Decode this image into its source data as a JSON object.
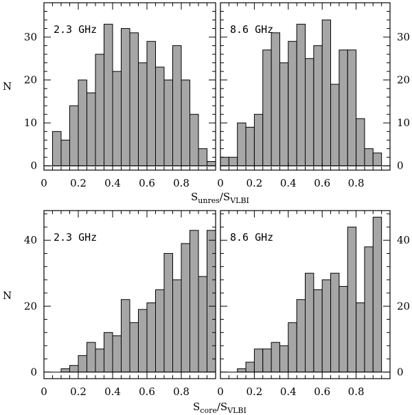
{
  "figure": {
    "top_xlabel": {
      "main": "S",
      "sub1": "unres",
      "slash": "/S",
      "sub2": "VLBI"
    },
    "bottom_xlabel": {
      "main": "S",
      "sub1": "core",
      "slash": "/S",
      "sub2": "VLBI"
    },
    "ylabel": "N"
  },
  "chart_data": [
    {
      "type": "bar",
      "panel": "top-left",
      "annotation": "2.3 GHz",
      "bin_edges_start": 0.05,
      "bin_width": 0.05,
      "values": [
        8,
        6,
        14,
        20,
        17,
        26,
        33,
        22,
        32,
        31,
        24,
        29,
        23,
        20,
        28,
        20,
        12,
        4,
        1
      ],
      "xlim": [
        0,
        1
      ],
      "ylim": [
        -1,
        38
      ],
      "xticks": [
        0,
        0.2,
        0.4,
        0.6,
        0.8
      ],
      "xtick_labels": [
        "0",
        "0.2",
        "0.4",
        "0.6",
        "0.8"
      ],
      "yticks": [
        0,
        10,
        20,
        30
      ],
      "ytick_labels": [
        "0",
        "10",
        "20",
        "30"
      ],
      "ylabel_side": "left"
    },
    {
      "type": "bar",
      "panel": "top-right",
      "annotation": "8.6 GHz",
      "bin_edges_start": 0.0,
      "bin_width": 0.05,
      "values": [
        2,
        2,
        10,
        9,
        12,
        27,
        31,
        24,
        29,
        33,
        25,
        28,
        34,
        19,
        27,
        27,
        11,
        4,
        3
      ],
      "xlim": [
        0,
        1
      ],
      "ylim": [
        -1,
        38
      ],
      "xticks": [
        0,
        0.2,
        0.4,
        0.6,
        0.8
      ],
      "xtick_labels": [
        "0",
        "0.2",
        "0.4",
        "0.6",
        "0.8"
      ],
      "yticks": [
        0,
        10,
        20,
        30
      ],
      "ytick_labels": [
        "0",
        "10",
        "20",
        "30"
      ],
      "ylabel_side": "right"
    },
    {
      "type": "bar",
      "panel": "bottom-left",
      "annotation": "2.3 GHz",
      "bin_edges_start": 0.1,
      "bin_width": 0.05,
      "values": [
        1,
        2,
        5,
        9,
        7,
        12,
        11,
        22,
        15,
        19,
        21,
        25,
        36,
        28,
        39,
        43,
        29,
        43
      ],
      "xlim": [
        0,
        1
      ],
      "ylim": [
        -2,
        49
      ],
      "xticks": [
        0,
        0.2,
        0.4,
        0.6,
        0.8
      ],
      "xtick_labels": [
        "0",
        "0.2",
        "0.4",
        "0.6",
        "0.8"
      ],
      "yticks": [
        0,
        20,
        40
      ],
      "ytick_labels": [
        "0",
        "20",
        "40"
      ],
      "ylabel_side": "left"
    },
    {
      "type": "bar",
      "panel": "bottom-right",
      "annotation": "8.6 GHz",
      "bin_edges_start": 0.1,
      "bin_width": 0.05,
      "values": [
        1,
        3,
        7,
        7,
        9,
        8,
        15,
        22,
        30,
        25,
        28,
        30,
        26,
        44,
        21,
        38,
        47
      ],
      "xlim": [
        0,
        1
      ],
      "ylim": [
        -2,
        49
      ],
      "xticks": [
        0,
        0.2,
        0.4,
        0.6,
        0.8
      ],
      "xtick_labels": [
        "0",
        "0.2",
        "0.4",
        "0.6",
        "0.8"
      ],
      "yticks": [
        0,
        20,
        40
      ],
      "ytick_labels": [
        "0",
        "20",
        "40"
      ],
      "ylabel_side": "right"
    }
  ]
}
